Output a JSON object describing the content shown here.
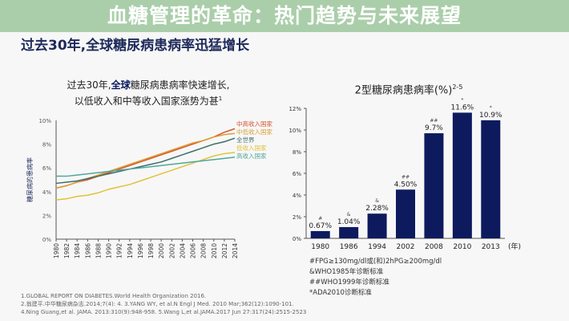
{
  "page_title": "过去30年,全球糖尿病患病率迅猛增长",
  "banner": "血糖管理的革命：热门趋势与未来展望",
  "chart_data": [
    {
      "type": "line",
      "title_line1_pre": "过去30年,",
      "title_line1_bold": "全球",
      "title_line1_post": "糖尿病患病率快速增长,",
      "title_line2": "以低收入和中等收入国家涨势为甚",
      "title_sup": "1",
      "ylabel": "糖尿病的患病率",
      "ylim": [
        0,
        10
      ],
      "yticks": [
        "0%",
        "2%",
        "4%",
        "6%",
        "8%",
        "10%"
      ],
      "x": [
        1980,
        1982,
        1984,
        1986,
        1988,
        1990,
        1992,
        1994,
        1996,
        1998,
        2000,
        2002,
        2004,
        2006,
        2008,
        2010,
        2012,
        2014
      ],
      "series": [
        {
          "name": "中高收入国家",
          "color": "#d9542b",
          "values": [
            4.3,
            4.5,
            4.8,
            5.0,
            5.3,
            5.6,
            5.9,
            6.2,
            6.5,
            6.8,
            7.1,
            7.4,
            7.7,
            8.0,
            8.3,
            8.6,
            9.0,
            9.3
          ]
        },
        {
          "name": "中低收入国家",
          "color": "#d9a038",
          "values": [
            4.3,
            4.5,
            4.8,
            5.1,
            5.4,
            5.7,
            6.0,
            6.3,
            6.6,
            6.9,
            7.2,
            7.5,
            7.8,
            8.1,
            8.3,
            8.6,
            8.8,
            8.9
          ]
        },
        {
          "name": "全世界",
          "color": "#3f6e6a",
          "values": [
            4.7,
            4.8,
            4.9,
            5.1,
            5.3,
            5.5,
            5.7,
            5.9,
            6.1,
            6.3,
            6.5,
            6.8,
            7.1,
            7.4,
            7.7,
            8.0,
            8.2,
            8.5
          ]
        },
        {
          "name": "低收入国家",
          "color": "#e0c23a",
          "values": [
            3.3,
            3.4,
            3.6,
            3.7,
            3.9,
            4.2,
            4.4,
            4.6,
            4.9,
            5.2,
            5.5,
            5.8,
            6.1,
            6.4,
            6.7,
            7.0,
            7.2,
            7.3
          ]
        },
        {
          "name": "高收入国家",
          "color": "#4fa79c",
          "values": [
            5.3,
            5.3,
            5.4,
            5.5,
            5.6,
            5.7,
            5.8,
            5.9,
            6.0,
            6.1,
            6.2,
            6.3,
            6.4,
            6.5,
            6.6,
            6.7,
            6.8,
            6.9
          ]
        }
      ]
    },
    {
      "type": "bar",
      "title": "2型糖尿病患病率(%)",
      "title_sup": "2-5",
      "ylim": [
        0,
        12
      ],
      "yticks": [
        "0%",
        "2%",
        "4%",
        "6%",
        "8%",
        "10%",
        "12%"
      ],
      "categories": [
        "1980",
        "1986",
        "1994",
        "2002",
        "2008",
        "2010",
        "2013"
      ],
      "unit_label": "(年)",
      "values": [
        0.67,
        1.04,
        2.28,
        4.5,
        9.7,
        11.6,
        10.9
      ],
      "labels": [
        "0.67%",
        "1.04%",
        "2.28%",
        "4.50%",
        "9.7%",
        "11.6%",
        "10.9%"
      ],
      "marks": [
        "#",
        "&",
        "&",
        "##",
        "##",
        "*",
        "*"
      ],
      "color": "#0d1b5e"
    }
  ],
  "notes": [
    "#FPG≥130mg/dl或(和)2hPG≥200mg/dl",
    "&WHO1985年诊断标准",
    "##WHO1999年诊断标准",
    "*ADA2010诊断标准"
  ],
  "refs": [
    "1.GLOBAL REPORT ON DIABETES.World Health Organization 2016.",
    "2.翁建平.中华糖尿病杂志.2014;7(4): 4. 3.YANG WY, et al.N Engl J Med. 2010 Mar;362(12):1090-101.",
    "4.Ning Guang,et al. JAMA. 2013:310(9):948-958. 5.Wang L,et al.JAMA.2017 Jun 27:317(24):2515-2523"
  ]
}
